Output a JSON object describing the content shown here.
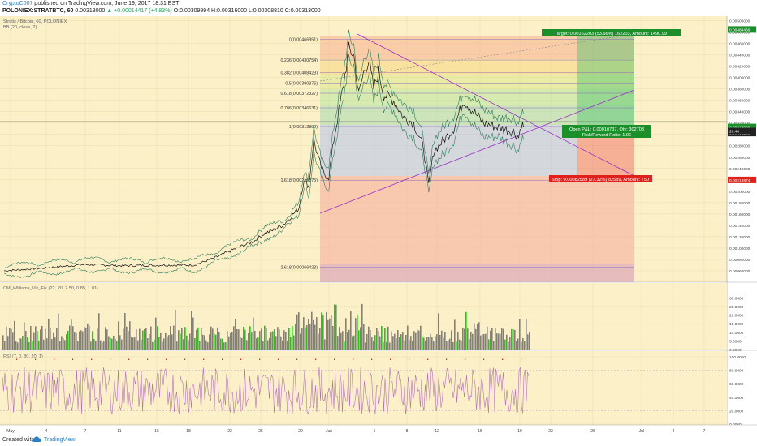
{
  "header": {
    "author": "CryptoC007",
    "published": " published on TradingView.com, June 19, 2017 18:31 EST",
    "symbol": "POLONIEX:STRATBTC, 60",
    "ohlc": " 0.00313000 ",
    "change": "▲ +0.00014417 (+4.83%)",
    "values": " O:0.00309994 H:0.00316000 L:0.00308810 C:0.00313000"
  },
  "legend": {
    "title": "Stratis / Bitcoin, 60, POLONIEX",
    "bb": "BB (20, close, 2)",
    "volume": "CM_Williams_Vix_Fix (22, 20, 2.50, 0.85, 1.01)",
    "rsi": "RSI (7, 0, 80, 20, 1)"
  },
  "colors": {
    "background": "#fcf0c8",
    "price": "#111111",
    "bb_lines": "#2e7d60",
    "green_bars": "#00dd00",
    "gray_bars": "#808080",
    "rsi_line": "#b371b8",
    "target_box": "#1b8f2a",
    "stop_box": "#e0201a",
    "trend_line": "#9b30c8"
  },
  "chart_data": {
    "type": "line",
    "x_ticks": [
      "May",
      "4",
      "7",
      "11",
      "15",
      "18",
      "22",
      "25",
      "29",
      "Jun",
      "5",
      "8",
      "12",
      "15",
      "19",
      "22",
      "26",
      "Jul",
      "4",
      "7"
    ],
    "y_ticks": [
      "0.00500000",
      "0.00480000",
      "0.00460000",
      "0.00440000",
      "0.00420000",
      "0.00400000",
      "0.00380000",
      "0.00360000",
      "0.00340000",
      "0.00320000",
      "0.00300000",
      "0.00280000",
      "0.00260000",
      "0.00240000",
      "0.00220000",
      "0.00200000",
      "0.00180000",
      "0.00160000",
      "0.00140000",
      "0.00120000",
      "0.00100000",
      "0.00080000",
      "0.00060000",
      "0.00040000"
    ],
    "ylim": [
      0.0004,
      0.00505
    ],
    "price_series": [
      {
        "d": 0,
        "v": 0.0006
      },
      {
        "d": 4,
        "v": 0.00065
      },
      {
        "d": 8,
        "v": 0.00071
      },
      {
        "d": 12,
        "v": 0.00069
      },
      {
        "d": 16,
        "v": 0.0007
      },
      {
        "d": 19,
        "v": 0.0007
      },
      {
        "d": 21,
        "v": 0.00082
      },
      {
        "d": 23,
        "v": 0.00098
      },
      {
        "d": 25,
        "v": 0.00112
      },
      {
        "d": 26,
        "v": 0.00125
      },
      {
        "d": 27,
        "v": 0.00132
      },
      {
        "d": 28,
        "v": 0.00142
      },
      {
        "d": 29.5,
        "v": 0.0017
      },
      {
        "d": 30,
        "v": 0.0022
      },
      {
        "d": 30.5,
        "v": 0.0021
      },
      {
        "d": 31,
        "v": 0.0029
      },
      {
        "d": 31.5,
        "v": 0.00255
      },
      {
        "d": 32,
        "v": 0.0023
      },
      {
        "d": 32.5,
        "v": 0.00225
      },
      {
        "d": 33,
        "v": 0.0029
      },
      {
        "d": 33.5,
        "v": 0.0034
      },
      {
        "d": 34,
        "v": 0.0039
      },
      {
        "d": 34.5,
        "v": 0.0045
      },
      {
        "d": 35,
        "v": 0.0044
      },
      {
        "d": 35.5,
        "v": 0.0037
      },
      {
        "d": 36,
        "v": 0.0041
      },
      {
        "d": 36.5,
        "v": 0.0043
      },
      {
        "d": 37,
        "v": 0.0038
      },
      {
        "d": 37.5,
        "v": 0.0041
      },
      {
        "d": 38,
        "v": 0.0037
      },
      {
        "d": 39,
        "v": 0.0036
      },
      {
        "d": 40,
        "v": 0.0033
      },
      {
        "d": 41,
        "v": 0.0032
      },
      {
        "d": 42,
        "v": 0.00275
      },
      {
        "d": 42.5,
        "v": 0.0021
      },
      {
        "d": 43,
        "v": 0.0027
      },
      {
        "d": 44,
        "v": 0.0029
      },
      {
        "d": 45,
        "v": 0.0031
      },
      {
        "d": 46,
        "v": 0.0036
      },
      {
        "d": 47,
        "v": 0.0034
      },
      {
        "d": 48,
        "v": 0.0032
      },
      {
        "d": 49,
        "v": 0.00315
      },
      {
        "d": 50,
        "v": 0.0031
      },
      {
        "d": 51,
        "v": 0.00305
      },
      {
        "d": 51.5,
        "v": 0.00295
      },
      {
        "d": 51.8,
        "v": 0.0032
      },
      {
        "d": 52,
        "v": 0.00313
      }
    ],
    "fib_levels": [
      {
        "label": "0(0.00466851)",
        "v": 0.00466851
      },
      {
        "label": "0.236(0.00430754)",
        "v": 0.00430754
      },
      {
        "label": "0.382(0.00408423)",
        "v": 0.00408423
      },
      {
        "label": "0.5(0.00390375)",
        "v": 0.00390375
      },
      {
        "label": "0.618(0.00372327)",
        "v": 0.00372327
      },
      {
        "label": "0.786(0.00346631)",
        "v": 0.00346631
      },
      {
        "label": "1(0.00313899)",
        "v": 0.00313899
      },
      {
        "label": "1.618(0.00219375)",
        "v": 0.00219375
      },
      {
        "label": "2.618(0.00066423)",
        "v": 0.00066423
      }
    ],
    "price_badges": [
      {
        "text": "0.00313000",
        "v": 0.00313,
        "color": "#1b8f2a"
      },
      {
        "text": "0.00484466",
        "v": 0.00484466,
        "color": "#1b8f2a"
      },
      {
        "text": "0.00219874",
        "v": 0.00219874,
        "color": "#e0201a"
      },
      {
        "text": "0.00302263",
        "v": 0.00302263,
        "color": "#222222"
      },
      {
        "text": "28:48",
        "v": 0.00306,
        "color": "#222222"
      }
    ],
    "position": {
      "target_label": "Target: 0.00162203 (53.66%) 162203, Amount: 1490.99",
      "open_label": "Open P&L: 0.00010737, Qty: 302703",
      "rr_label": "Risk/Reward Ratio: 1.96",
      "stop_label": "Stop: 0.00082589 (27.32%) 82589, Amount: 750",
      "entry": 0.00313,
      "target": 0.00475,
      "stop": 0.0023
    },
    "volume_ticks": [
      "30.0000",
      "25.0000",
      "20.0000",
      "15.0000",
      "10.0000",
      "5.0000",
      "0.0000"
    ],
    "volume_max": 32,
    "rsi_ticks": [
      "100.0000",
      "80.0000",
      "60.0000",
      "40.0000",
      "20.0000",
      "0.0000"
    ]
  }
}
